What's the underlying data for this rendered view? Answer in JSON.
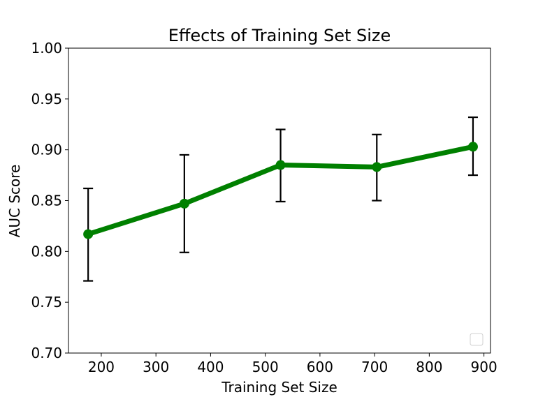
{
  "chart_data": {
    "type": "line",
    "title": "Effects of Training Set Size",
    "xlabel": "Training Set Size",
    "ylabel": "AUC Score",
    "xlim": [
      140,
      912
    ],
    "ylim": [
      0.7,
      1.0
    ],
    "xticks": [
      200,
      300,
      400,
      500,
      600,
      700,
      800,
      900
    ],
    "xtick_labels": [
      "200",
      "300",
      "400",
      "500",
      "600",
      "700",
      "800",
      "900"
    ],
    "yticks": [
      0.7,
      0.75,
      0.8,
      0.85,
      0.9,
      0.95,
      1.0
    ],
    "ytick_labels": [
      "0.70",
      "0.75",
      "0.80",
      "0.85",
      "0.90",
      "0.95",
      "1.00"
    ],
    "grid": false,
    "legend": "lower-right (empty)",
    "series": [
      {
        "color": "#008000",
        "marker": "circle",
        "x": [
          176,
          352,
          528,
          704,
          880
        ],
        "y": [
          0.817,
          0.847,
          0.885,
          0.883,
          0.903
        ],
        "yerr_low": [
          0.771,
          0.799,
          0.849,
          0.85,
          0.875
        ],
        "yerr_high": [
          0.862,
          0.895,
          0.92,
          0.915,
          0.932
        ]
      }
    ]
  }
}
